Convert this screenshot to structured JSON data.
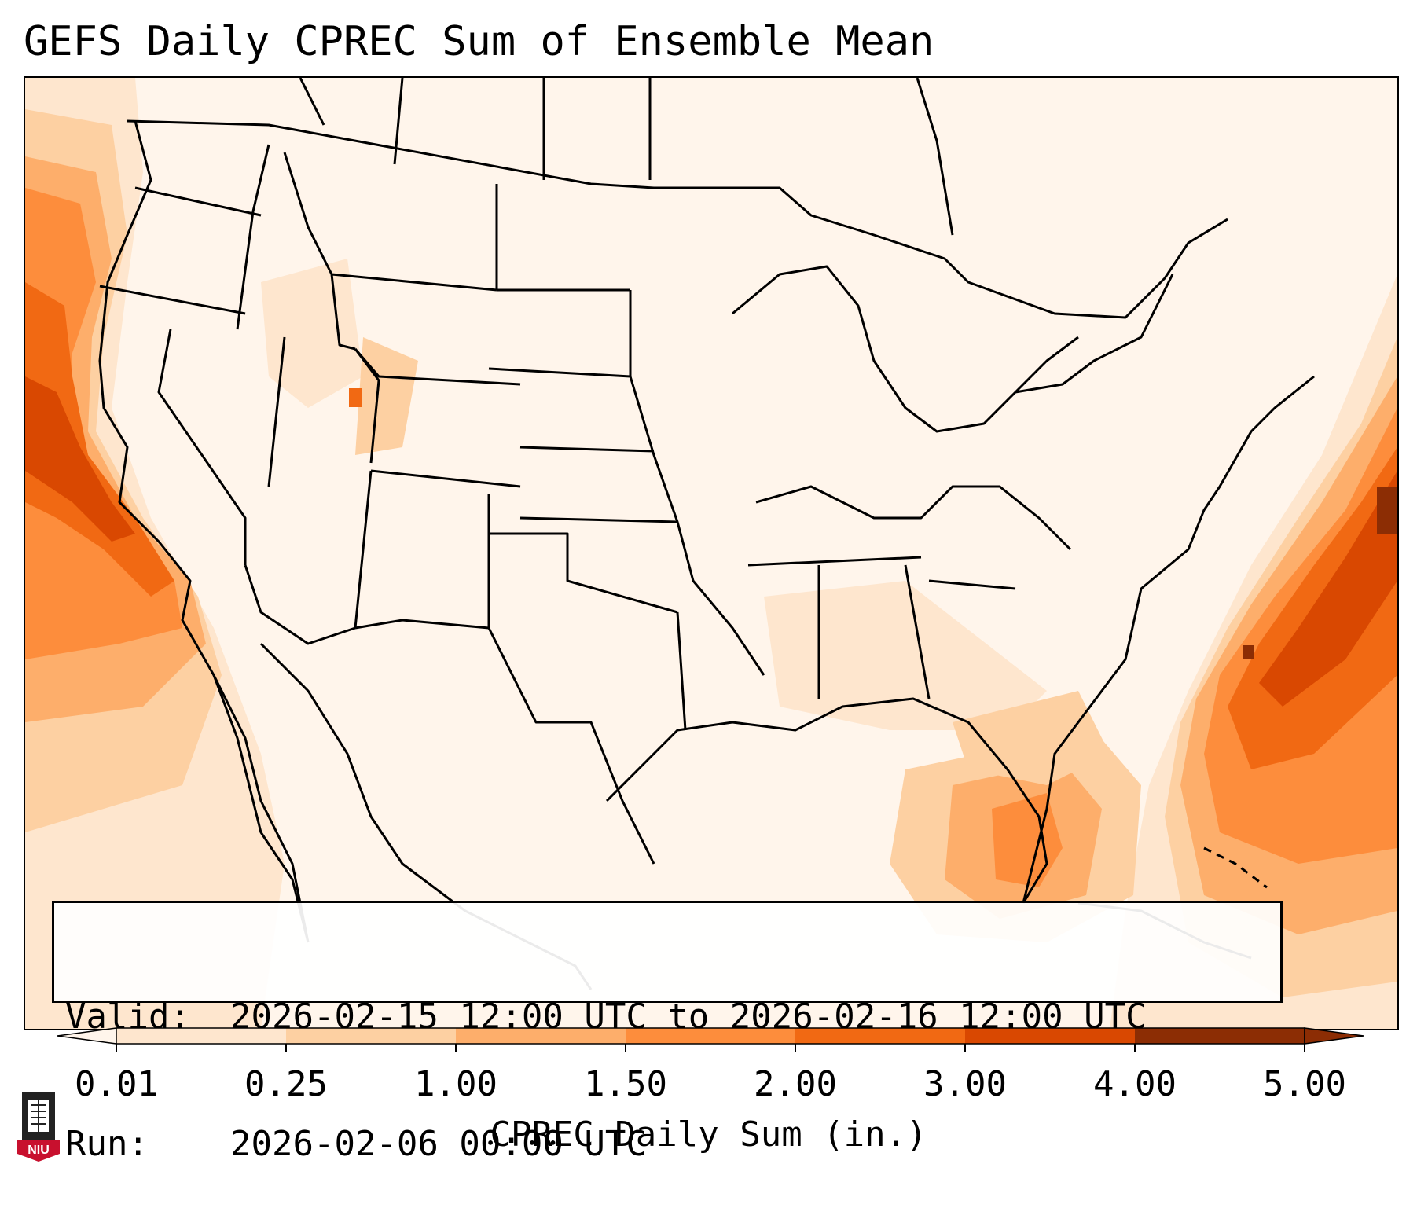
{
  "title": "GEFS Daily CPREC Sum of Ensemble Mean",
  "info": {
    "valid_key": "Valid:",
    "valid_value": "2026-02-15 12:00 UTC to 2026-02-16 12:00 UTC",
    "run_key": "Run:",
    "run_value": "2026-02-06 00:00 UTC"
  },
  "colorbar": {
    "label": "CPREC Daily Sum (in.)",
    "ticks": [
      "0.01",
      "0.25",
      "1.00",
      "1.50",
      "2.00",
      "3.00",
      "4.00",
      "5.00"
    ],
    "colors": [
      "#fff5eb",
      "#fee6ce",
      "#fdd0a2",
      "#fdae6b",
      "#fd8d3c",
      "#f16913",
      "#d94801",
      "#8c2d04"
    ],
    "extend": "both"
  },
  "logo": {
    "name": "niu-logo",
    "text": "NIU"
  },
  "palette": {
    "frame": "#000000",
    "background": "#ffffff"
  }
}
